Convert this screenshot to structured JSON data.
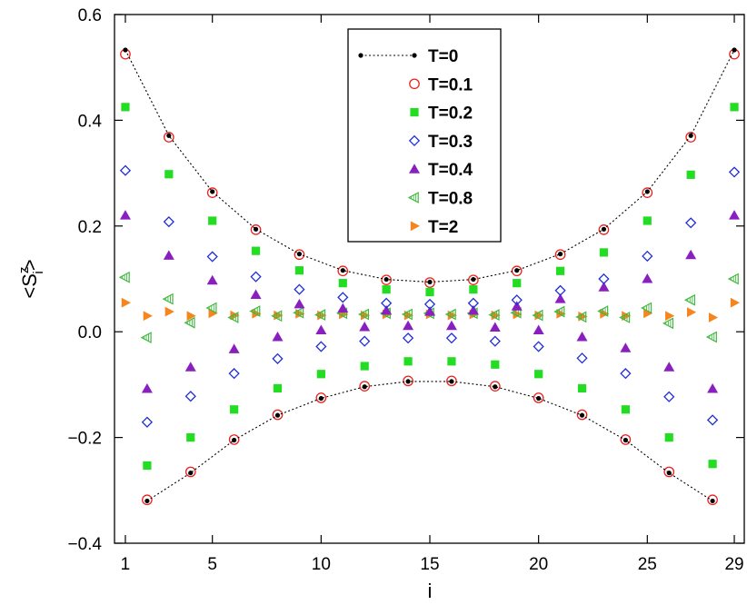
{
  "chart_data": {
    "type": "scatter",
    "xlabel": "i",
    "ylabel": "<S",
    "ylabel_sub": "i",
    "ylabel_sup": "z",
    "ylabel_close": ">",
    "xlim": [
      0.5,
      29.5
    ],
    "ylim": [
      -0.4,
      0.6
    ],
    "xticks": [
      1,
      5,
      10,
      15,
      20,
      25,
      29
    ],
    "yticks": [
      -0.4,
      -0.2,
      0.0,
      0.2,
      0.4,
      0.6
    ],
    "ytick_labels": [
      "−0.4",
      "−0.2",
      "0.0",
      "0.2",
      "0.4",
      "0.6"
    ],
    "legend_position": "top-center",
    "series": [
      {
        "name": "T=0",
        "marker": "dot",
        "line": "dotted",
        "color": "#000000",
        "x": [
          1,
          2,
          3,
          4,
          5,
          6,
          7,
          8,
          9,
          10,
          11,
          12,
          13,
          14,
          15,
          16,
          17,
          18,
          19,
          20,
          21,
          22,
          23,
          24,
          25,
          26,
          27,
          28,
          29
        ],
        "y": [
          0.533,
          -0.32,
          0.371,
          -0.267,
          0.265,
          -0.205,
          0.194,
          -0.158,
          0.147,
          -0.126,
          0.116,
          -0.104,
          0.099,
          -0.094,
          0.094,
          -0.094,
          0.099,
          -0.104,
          0.116,
          -0.126,
          0.147,
          -0.158,
          0.194,
          -0.205,
          0.265,
          -0.267,
          0.371,
          -0.32,
          0.533
        ]
      },
      {
        "name": "T=0.1",
        "marker": "circle-open",
        "color": "#e8231f",
        "x": [
          1,
          2,
          3,
          4,
          5,
          6,
          7,
          8,
          9,
          10,
          11,
          12,
          13,
          14,
          15,
          16,
          17,
          18,
          19,
          20,
          21,
          22,
          23,
          24,
          25,
          26,
          27,
          28,
          29
        ],
        "y": [
          0.525,
          -0.318,
          0.368,
          -0.265,
          0.263,
          -0.204,
          0.193,
          -0.157,
          0.146,
          -0.125,
          0.115,
          -0.103,
          0.098,
          -0.093,
          0.093,
          -0.093,
          0.098,
          -0.103,
          0.115,
          -0.125,
          0.146,
          -0.157,
          0.193,
          -0.204,
          0.263,
          -0.265,
          0.368,
          -0.318,
          0.525
        ]
      },
      {
        "name": "T=0.2",
        "marker": "square-filled",
        "color": "#22dd22",
        "x": [
          1,
          2,
          3,
          4,
          5,
          6,
          7,
          8,
          9,
          10,
          11,
          12,
          13,
          14,
          15,
          16,
          17,
          18,
          19,
          20,
          21,
          22,
          23,
          24,
          25,
          26,
          27,
          28,
          29
        ],
        "y": [
          0.425,
          -0.253,
          0.298,
          -0.2,
          0.21,
          -0.147,
          0.153,
          -0.107,
          0.116,
          -0.08,
          0.092,
          -0.065,
          0.08,
          -0.056,
          0.075,
          -0.056,
          0.08,
          -0.062,
          0.092,
          -0.08,
          0.115,
          -0.107,
          0.15,
          -0.147,
          0.21,
          -0.2,
          0.297,
          -0.25,
          0.425
        ]
      },
      {
        "name": "T=0.3",
        "marker": "diamond-open",
        "color": "#1f2fd6",
        "x": [
          1,
          2,
          3,
          4,
          5,
          6,
          7,
          8,
          9,
          10,
          11,
          12,
          13,
          14,
          15,
          16,
          17,
          18,
          19,
          20,
          21,
          22,
          23,
          24,
          25,
          26,
          27,
          28,
          29
        ],
        "y": [
          0.305,
          -0.171,
          0.208,
          -0.122,
          0.142,
          -0.079,
          0.104,
          -0.051,
          0.08,
          -0.028,
          0.065,
          -0.018,
          0.054,
          -0.012,
          0.052,
          -0.012,
          0.054,
          -0.018,
          0.06,
          -0.028,
          0.078,
          -0.05,
          0.1,
          -0.079,
          0.143,
          -0.123,
          0.206,
          -0.167,
          0.302
        ]
      },
      {
        "name": "T=0.4",
        "marker": "triangle-up-filled",
        "color": "#8a1fbf",
        "x": [
          1,
          2,
          3,
          4,
          5,
          6,
          7,
          8,
          9,
          10,
          11,
          12,
          13,
          14,
          15,
          16,
          17,
          18,
          19,
          20,
          21,
          22,
          23,
          24,
          25,
          26,
          27,
          28,
          29
        ],
        "y": [
          0.22,
          -0.108,
          0.144,
          -0.067,
          0.097,
          -0.033,
          0.07,
          -0.01,
          0.052,
          0.003,
          0.044,
          0.009,
          0.04,
          0.011,
          0.038,
          0.011,
          0.04,
          0.008,
          0.048,
          0.003,
          0.062,
          -0.01,
          0.084,
          -0.031,
          0.1,
          -0.067,
          0.145,
          -0.108,
          0.22
        ]
      },
      {
        "name": "T=0.8",
        "marker": "triangle-left-open",
        "color": "#3fb83f",
        "x": [
          1,
          2,
          3,
          4,
          5,
          6,
          7,
          8,
          9,
          10,
          11,
          12,
          13,
          14,
          15,
          16,
          17,
          18,
          19,
          20,
          21,
          22,
          23,
          24,
          25,
          26,
          27,
          28,
          29
        ],
        "y": [
          0.103,
          -0.011,
          0.062,
          0.017,
          0.045,
          0.027,
          0.039,
          0.03,
          0.036,
          0.032,
          0.035,
          0.033,
          0.035,
          0.033,
          0.035,
          0.033,
          0.035,
          0.032,
          0.036,
          0.031,
          0.038,
          0.028,
          0.039,
          0.027,
          0.045,
          0.016,
          0.06,
          -0.01,
          0.1
        ]
      },
      {
        "name": "T=2",
        "marker": "triangle-right-filled",
        "color": "#f5861f",
        "x": [
          1,
          2,
          3,
          4,
          5,
          6,
          7,
          8,
          9,
          10,
          11,
          12,
          13,
          14,
          15,
          16,
          17,
          18,
          19,
          20,
          21,
          22,
          23,
          24,
          25,
          26,
          27,
          28,
          29
        ],
        "y": [
          0.055,
          0.03,
          0.038,
          0.03,
          0.035,
          0.031,
          0.034,
          0.031,
          0.034,
          0.031,
          0.033,
          0.031,
          0.033,
          0.031,
          0.033,
          0.031,
          0.033,
          0.031,
          0.033,
          0.031,
          0.034,
          0.029,
          0.034,
          0.03,
          0.035,
          0.03,
          0.037,
          0.027,
          0.055
        ]
      }
    ]
  }
}
